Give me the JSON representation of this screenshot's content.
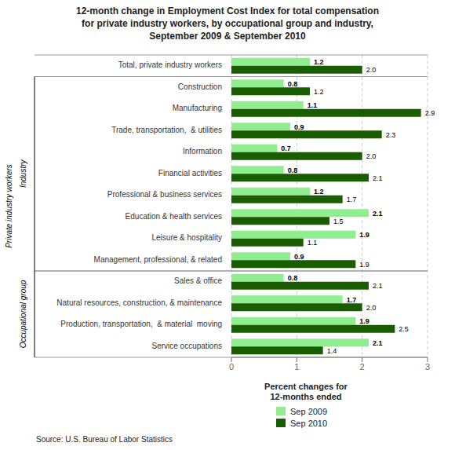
{
  "chart_data": {
    "type": "bar",
    "orientation": "horizontal",
    "title": "12-month change in Employment Cost Index for total compensation\nfor private industry workers, by occupational group and industry,\nSeptember 2009 & September 2010",
    "categories": [
      "Service occupations",
      "Production, transportation,  & material  moving",
      "Natural resources, construction, & maintenance",
      "Sales & office",
      "Management, professional, & related",
      "Leisure & hospitality",
      "Education & health services",
      "Professional & business services",
      "Financial activities",
      "Information",
      "Trade, transportation,  & utilities",
      "Manufacturing",
      "Construction",
      "Total, private industry workers"
    ],
    "series": [
      {
        "name": "Sep 2009",
        "color": "#90EE90",
        "values": [
          2.1,
          1.9,
          1.7,
          0.8,
          0.9,
          1.9,
          2.1,
          1.2,
          0.8,
          0.7,
          0.9,
          1.1,
          0.8,
          1.2
        ],
        "value_labels": [
          "2.1",
          "1.9",
          "1.7",
          "0.8",
          "0.9",
          "1.9",
          "2.1",
          "1.2",
          "0.8",
          "0.7",
          "0.9",
          "1.1",
          "0.8",
          "1.2"
        ]
      },
      {
        "name": "Sep 2010",
        "color": "#1a5c00",
        "values": [
          1.4,
          2.5,
          2.0,
          2.1,
          1.9,
          1.1,
          1.5,
          1.7,
          2.1,
          2.0,
          2.3,
          2.9,
          1.2,
          2.0
        ],
        "value_labels": [
          "1.4",
          "2.5",
          "2.0",
          "2.1",
          "1.9",
          "1.1",
          "1.5",
          "1.7",
          "2.1",
          "2.0",
          "2.3",
          "2.9",
          "1.2",
          "2.0"
        ]
      }
    ],
    "xlim": [
      0,
      3
    ],
    "xticks": [
      0,
      1,
      2,
      3
    ],
    "grid": true,
    "data_labels": true,
    "legend": "bottom",
    "annotations": [
      "Private industry workers",
      "Industry",
      "Occupational group",
      "Percent changes for\n12-months ended",
      "Source: U.S. Bureau of Labor Statistics"
    ]
  }
}
